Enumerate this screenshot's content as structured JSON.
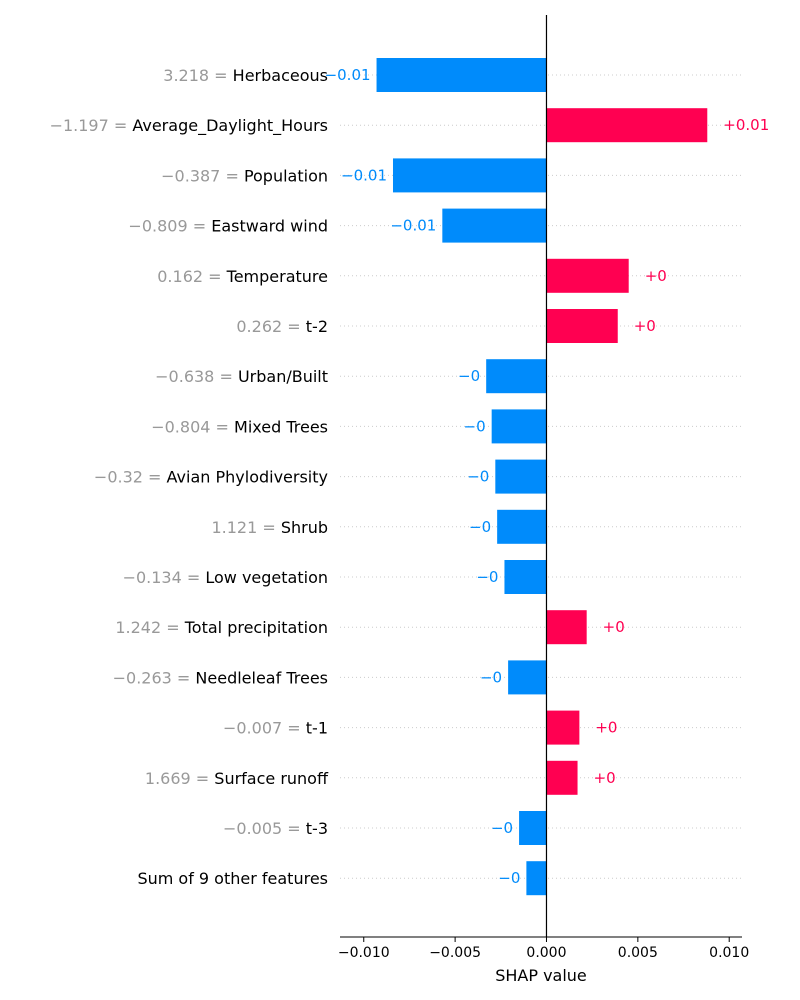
{
  "chart_data": {
    "type": "bar",
    "orientation": "horizontal",
    "xlabel": "SHAP value",
    "xlim": [
      -0.0113,
      0.0107
    ],
    "xticks": [
      -0.01,
      -0.005,
      0.0,
      0.005,
      0.01
    ],
    "xtick_labels": [
      "−0.010",
      "−0.005",
      "0.000",
      "0.005",
      "0.010"
    ],
    "grid": "dotted horizontal row guides",
    "colors": {
      "positive": "#ff0051",
      "negative": "#008bfb",
      "feature_value": "#999999"
    },
    "features": [
      {
        "value_text": "3.218",
        "name": "Herbaceous",
        "shap": -0.0093,
        "label": "−0.01"
      },
      {
        "value_text": "−1.197",
        "name": "Average_Daylight_Hours",
        "shap": 0.0088,
        "label": "+0.01"
      },
      {
        "value_text": "−0.387",
        "name": "Population",
        "shap": -0.0084,
        "label": "−0.01"
      },
      {
        "value_text": "−0.809",
        "name": "Eastward wind",
        "shap": -0.0057,
        "label": "−0.01"
      },
      {
        "value_text": "0.162",
        "name": "Temperature",
        "shap": 0.0045,
        "label": "+0"
      },
      {
        "value_text": "0.262",
        "name": "t-2",
        "shap": 0.0039,
        "label": "+0"
      },
      {
        "value_text": "−0.638",
        "name": "Urban/Built",
        "shap": -0.0033,
        "label": "−0"
      },
      {
        "value_text": "−0.804",
        "name": "Mixed Trees",
        "shap": -0.003,
        "label": "−0"
      },
      {
        "value_text": "−0.32",
        "name": "Avian Phylodiversity",
        "shap": -0.0028,
        "label": "−0"
      },
      {
        "value_text": "1.121",
        "name": "Shrub",
        "shap": -0.0027,
        "label": "−0"
      },
      {
        "value_text": "−0.134",
        "name": "Low vegetation",
        "shap": -0.0023,
        "label": "−0"
      },
      {
        "value_text": "1.242",
        "name": "Total precipitation",
        "shap": 0.0022,
        "label": "+0"
      },
      {
        "value_text": "−0.263",
        "name": "Needleleaf Trees",
        "shap": -0.0021,
        "label": "−0"
      },
      {
        "value_text": "−0.007",
        "name": "t-1",
        "shap": 0.0018,
        "label": "+0"
      },
      {
        "value_text": "1.669",
        "name": "Surface runoff",
        "shap": 0.0017,
        "label": "+0"
      },
      {
        "value_text": "−0.005",
        "name": "t-3",
        "shap": -0.0015,
        "label": "−0"
      },
      {
        "value_text": "",
        "name": "Sum of 9 other features",
        "shap": -0.0011,
        "label": "−0"
      }
    ]
  }
}
